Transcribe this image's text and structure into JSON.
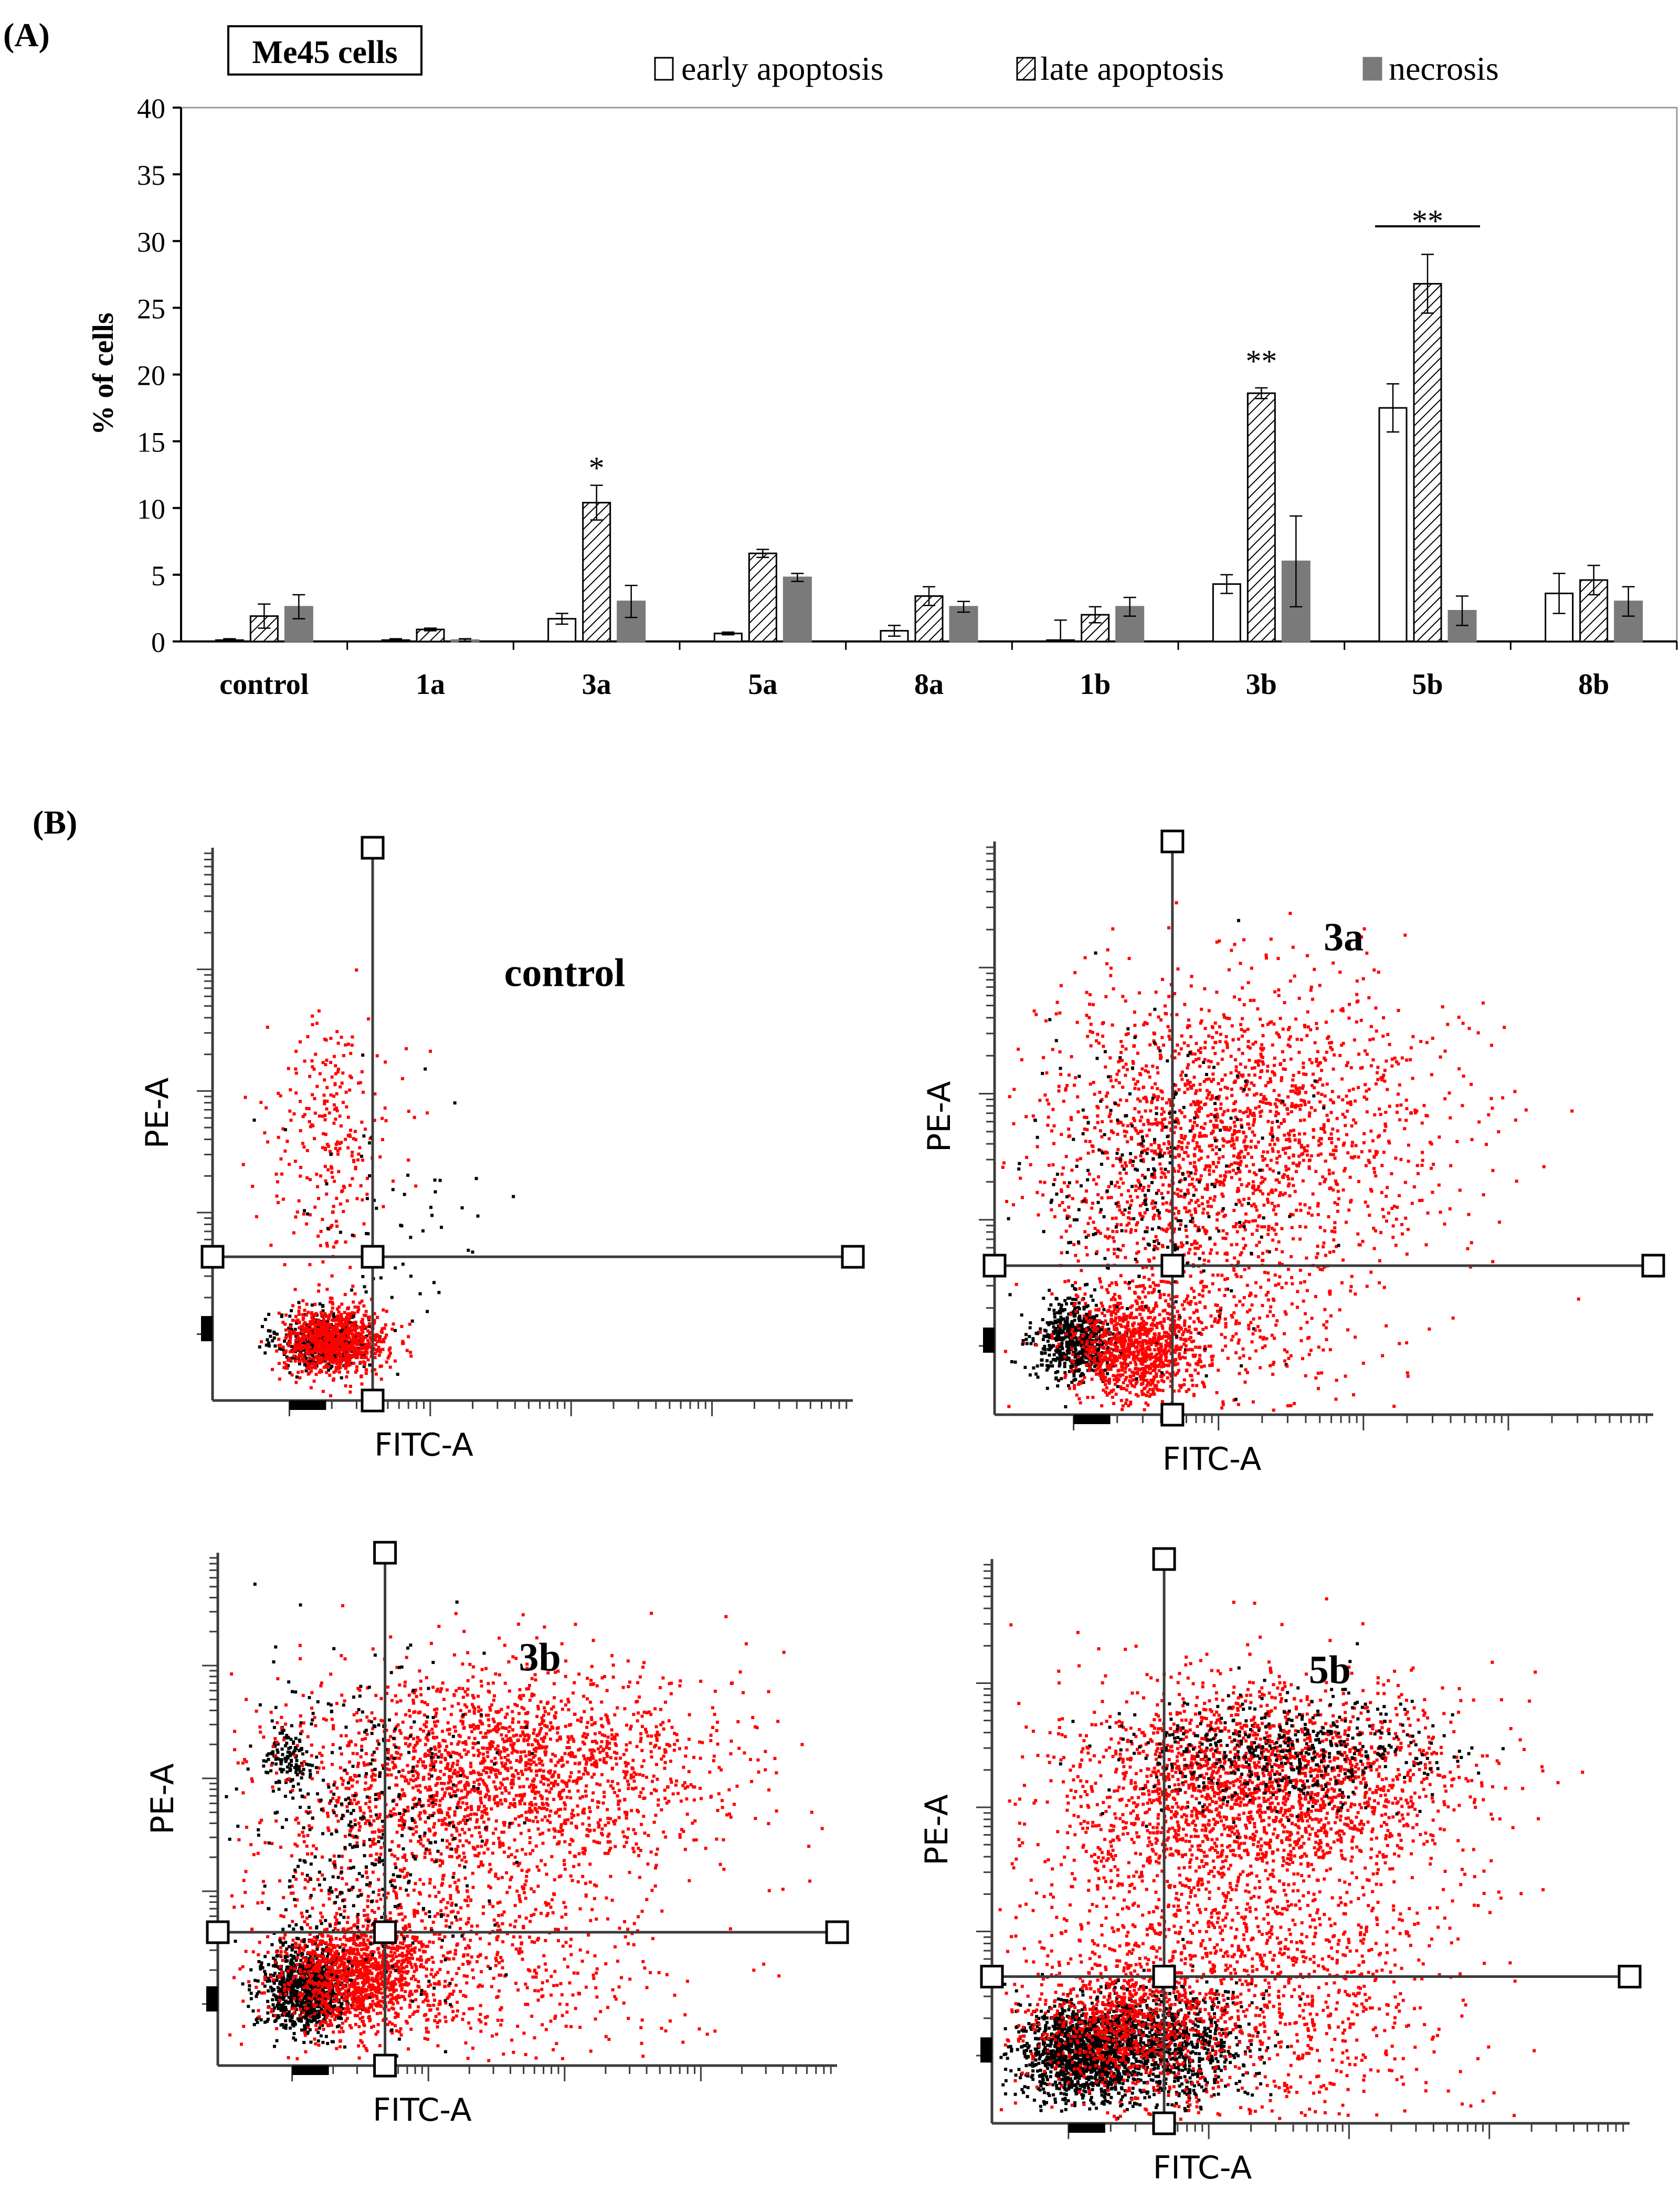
{
  "panel_a": {
    "label": "(A)",
    "cell_line": "Me45 cells",
    "legend": [
      "early apoptosis",
      "late apoptosis",
      "necrosis"
    ]
  },
  "panel_b": {
    "label": "(B)",
    "x_axis_label": "FITC-A",
    "y_axis_label": "PE-A"
  },
  "colors": {
    "axis": "#000000",
    "necrosis_fill": "#7a7a7a",
    "early_fill": "#ffffff",
    "late_hatch": "#000000",
    "dot_red": "#ff0000",
    "dot_black": "#000000",
    "gate": "#3c3c3c"
  },
  "chart_data": [
    {
      "type": "bar",
      "title": "Me45 cells",
      "ylabel": "% of cells",
      "xlabel": "",
      "ylim": [
        0,
        40
      ],
      "yticks": [
        0,
        5,
        10,
        15,
        20,
        25,
        30,
        35,
        40
      ],
      "categories": [
        "control",
        "1a",
        "3a",
        "5a",
        "8a",
        "1b",
        "3b",
        "5b",
        "8b"
      ],
      "series": [
        {
          "name": "early apoptosis",
          "values": [
            0.1,
            0.1,
            1.7,
            0.6,
            0.8,
            0.1,
            4.3,
            17.5,
            3.6
          ],
          "errors": [
            0.1,
            0.1,
            0.4,
            0.1,
            0.4,
            1.5,
            0.7,
            1.8,
            1.5
          ]
        },
        {
          "name": "late apoptosis",
          "values": [
            1.9,
            0.9,
            10.4,
            6.6,
            3.4,
            2.0,
            18.6,
            26.8,
            4.6
          ],
          "errors": [
            0.9,
            0.1,
            1.3,
            0.3,
            0.7,
            0.6,
            0.4,
            2.2,
            1.1
          ]
        },
        {
          "name": "necrosis",
          "values": [
            2.6,
            0.1,
            3.0,
            4.8,
            2.6,
            2.6,
            6.0,
            2.3,
            3.0
          ],
          "errors": [
            0.9,
            0.1,
            1.2,
            0.3,
            0.4,
            0.7,
            3.4,
            1.1,
            1.1
          ]
        }
      ],
      "annotations": [
        {
          "text": "*",
          "category": "3a",
          "value": 13.0
        },
        {
          "text": "**",
          "category": "3b",
          "value": 21.0
        },
        {
          "text": "**",
          "category": "5b",
          "value": 31.5
        }
      ],
      "legend_position": "top"
    },
    {
      "type": "scatter",
      "title": "control",
      "xlabel": "FITC-A",
      "ylabel": "PE-A",
      "scale": "log",
      "quadrant_gate": {
        "x": 0.25,
        "y": 0.26
      }
    },
    {
      "type": "scatter",
      "title": "3a",
      "xlabel": "FITC-A",
      "ylabel": "PE-A",
      "scale": "log",
      "quadrant_gate": {
        "x": 0.27,
        "y": 0.26
      }
    },
    {
      "type": "scatter",
      "title": "3b",
      "xlabel": "FITC-A",
      "ylabel": "PE-A",
      "scale": "log",
      "quadrant_gate": {
        "x": 0.27,
        "y": 0.26
      }
    },
    {
      "type": "scatter",
      "title": "5b",
      "xlabel": "FITC-A",
      "ylabel": "PE-A",
      "scale": "log",
      "quadrant_gate": {
        "x": 0.27,
        "y": 0.26
      }
    }
  ]
}
